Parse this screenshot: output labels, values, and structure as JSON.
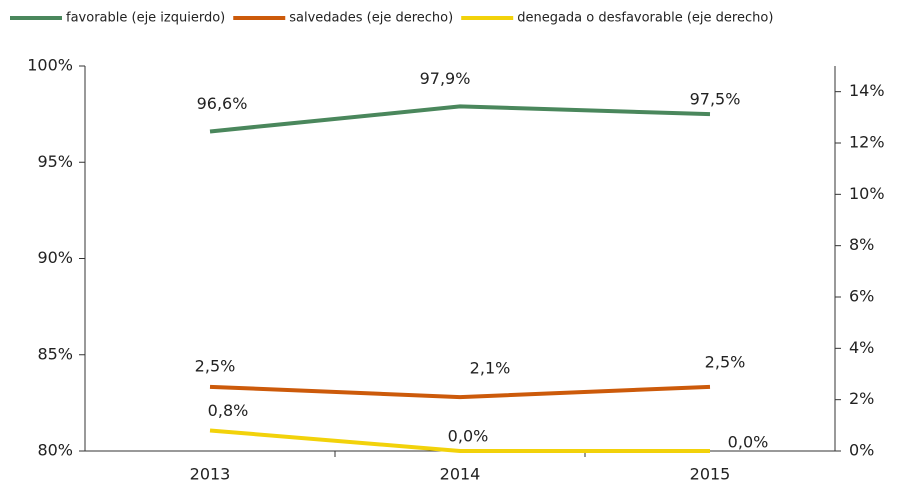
{
  "chart_data": {
    "type": "line",
    "categories": [
      "2013",
      "2014",
      "2015"
    ],
    "series": [
      {
        "name": "favorable (eje izquierdo)",
        "color": "#4a875c",
        "values": [
          96.6,
          97.9,
          97.5
        ],
        "value_labels": [
          "96,6%",
          "97,9%",
          "97,5%"
        ]
      },
      {
        "name": "salvedades (eje derecho)",
        "color": "#cc5a0a",
        "axis": "y2",
        "values": [
          2.5,
          2.1,
          2.5
        ],
        "value_labels": [
          "2,5%",
          "2,1%",
          "2,5%"
        ]
      },
      {
        "name": "denegada o desfavorable (eje derecho)",
        "color": "#f2d20a",
        "axis": "y2",
        "values": [
          0.8,
          0.0,
          0.0
        ],
        "value_labels": [
          "0,8%",
          "0,0%",
          "0,0%"
        ]
      }
    ],
    "ylim": [
      80,
      100
    ],
    "yticks": [
      {
        "value": 80,
        "label": "80%"
      },
      {
        "value": 85,
        "label": "85%"
      },
      {
        "value": 90,
        "label": "90%"
      },
      {
        "value": 95,
        "label": "95%"
      },
      {
        "value": 100,
        "label": "100%"
      }
    ],
    "y2lim": [
      0,
      15
    ],
    "y2ticks": [
      {
        "value": 0,
        "label": "0%"
      },
      {
        "value": 2,
        "label": "2%"
      },
      {
        "value": 4,
        "label": "4%"
      },
      {
        "value": 6,
        "label": "6%"
      },
      {
        "value": 8,
        "label": "8%"
      },
      {
        "value": 10,
        "label": "10%"
      },
      {
        "value": 12,
        "label": "12%"
      },
      {
        "value": 14,
        "label": "14%"
      }
    ],
    "legend": "top",
    "grid": false
  }
}
